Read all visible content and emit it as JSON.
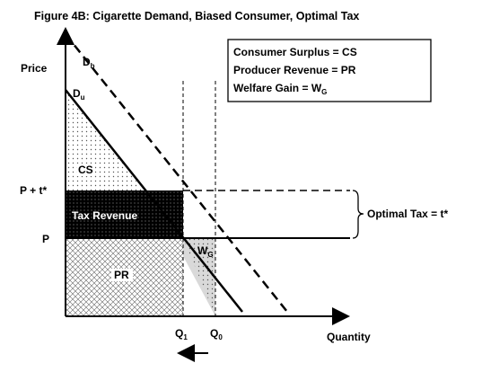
{
  "figure": {
    "title": "Figure 4B:  Cigarette Demand, Biased  Consumer, Optimal Tax"
  },
  "axes": {
    "y_label": "Price",
    "x_label": "Quantity",
    "p_plus_t_label": "P + t*",
    "p_label": "P",
    "q1_label": "Q",
    "q1_sub": "1",
    "q0_label": "Q",
    "q0_sub": "0"
  },
  "curves": {
    "db_label": "D",
    "db_sub": "b",
    "du_label": "D",
    "du_sub": "u"
  },
  "areas": {
    "cs": "CS",
    "tax_revenue": "Tax Revenue",
    "pr": "PR",
    "wg": "W",
    "wg_sub": "G"
  },
  "legend": {
    "line1": "Consumer Surplus = CS",
    "line2": "Producer Revenue = PR",
    "line3_main": "Welfare Gain = W",
    "line3_sub": "G"
  },
  "annotation": {
    "optimal_tax": "Optimal Tax = t*"
  }
}
